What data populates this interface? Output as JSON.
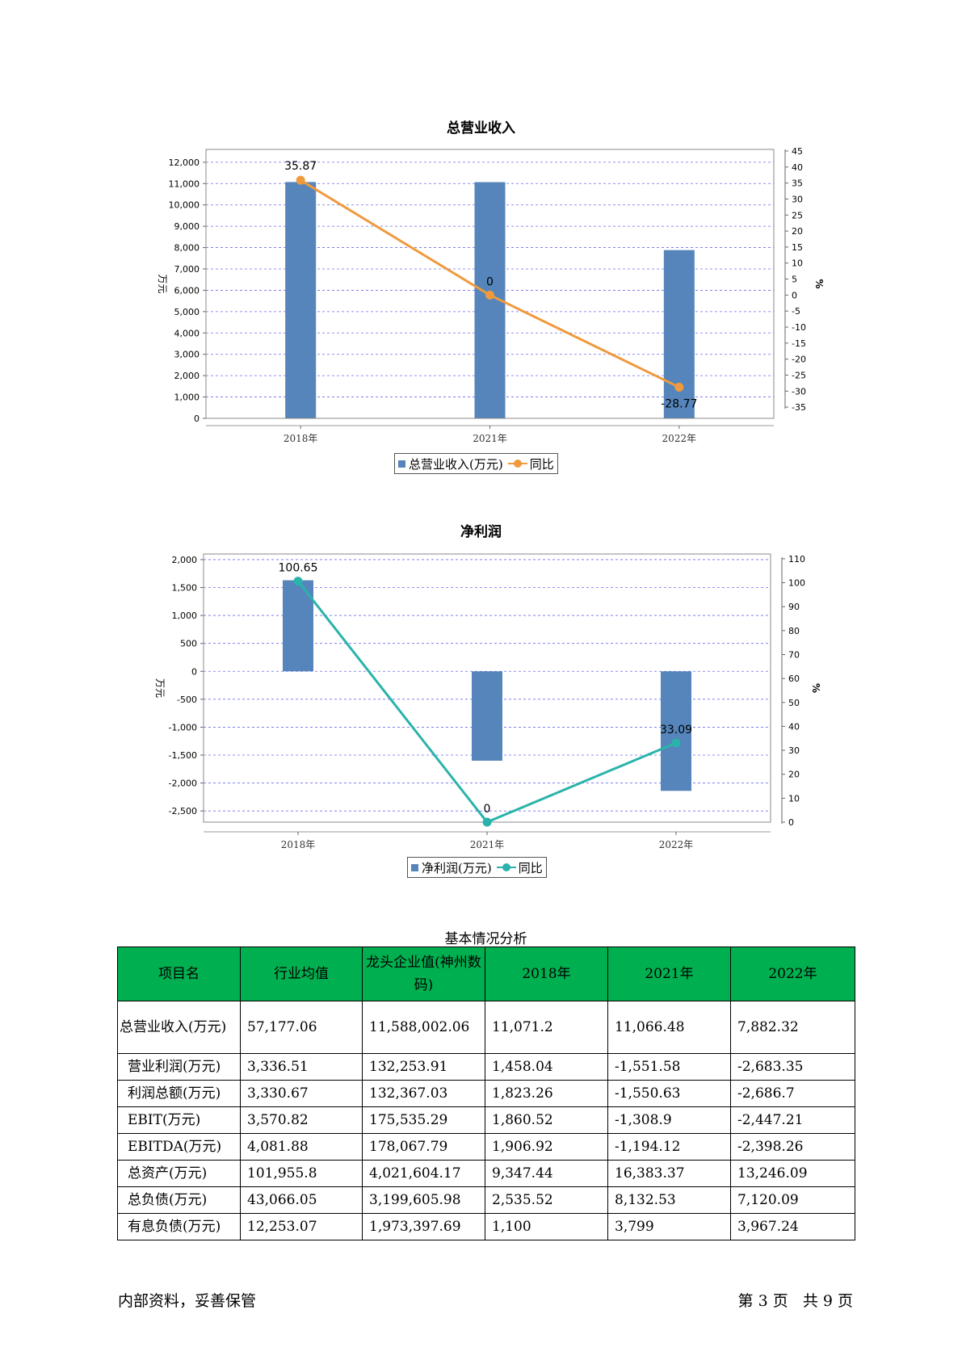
{
  "charts": [
    {
      "type": "bar",
      "title": "总营业收入",
      "ylabel": "万元",
      "y2label": "%",
      "categories": [
        "2018年",
        "2021年",
        "2022年"
      ],
      "ylim": [
        0,
        12600
      ],
      "yticks": [
        0,
        1000,
        2000,
        3000,
        4000,
        5000,
        6000,
        7000,
        8000,
        9000,
        10000,
        11000,
        12000
      ],
      "y2lim": [
        -38.5,
        45.5
      ],
      "y2ticks": [
        45,
        40,
        35,
        30,
        25,
        20,
        15,
        10,
        5,
        0,
        -5,
        -10,
        -15,
        -20,
        -25,
        -30,
        -35
      ],
      "series": [
        {
          "name": "总营业收入(万元)",
          "kind": "bar",
          "values": [
            11071.2,
            11066.48,
            7882.32
          ],
          "color": "#5585bb"
        },
        {
          "name": "同比",
          "kind": "line",
          "axis": "right",
          "values": [
            35.87,
            0,
            -28.77
          ],
          "labels": [
            "35.87",
            "0",
            "-28.77"
          ],
          "color": "#ef9a3e"
        }
      ],
      "legend_position": "bottom-center",
      "grid": true
    },
    {
      "type": "bar",
      "title": "净利润",
      "ylabel": "万元",
      "y2label": "%",
      "categories": [
        "2018年",
        "2021年",
        "2022年"
      ],
      "ylim": [
        -2700,
        2100
      ],
      "yticks": [
        2000,
        1500,
        1000,
        500,
        0,
        -500,
        -1000,
        -1500,
        -2000,
        -2500
      ],
      "y2lim": [
        0,
        112
      ],
      "y2ticks": [
        110,
        100,
        90,
        80,
        70,
        60,
        50,
        40,
        30,
        20,
        10,
        0
      ],
      "series": [
        {
          "name": "净利润(万元)",
          "kind": "bar",
          "values": [
            1630,
            -1600,
            -2140
          ],
          "color": "#5585bb"
        },
        {
          "name": "同比",
          "kind": "line",
          "axis": "right",
          "values": [
            100.65,
            0,
            33.09
          ],
          "labels": [
            "100.65",
            "0",
            "33.09"
          ],
          "color": "#2ab3aa"
        }
      ],
      "legend_position": "bottom-center",
      "grid": true
    }
  ],
  "table": {
    "caption": "基本情况分析",
    "headers": [
      "项目名",
      "行业均值",
      "龙头企业值(神州数码)",
      "2018年",
      "2021年",
      "2022年"
    ],
    "rows": [
      [
        "总营业收入(万元)",
        "57,177.06",
        "11,588,002.06",
        "11,071.2",
        "11,066.48",
        "7,882.32"
      ],
      [
        "营业利润(万元)",
        "3,336.51",
        "132,253.91",
        "1,458.04",
        "-1,551.58",
        "-2,683.35"
      ],
      [
        "利润总额(万元)",
        "3,330.67",
        "132,367.03",
        "1,823.26",
        "-1,550.63",
        "-2,686.7"
      ],
      [
        "EBIT(万元)",
        "3,570.82",
        "175,535.29",
        "1,860.52",
        "-1,308.9",
        "-2,447.21"
      ],
      [
        "EBITDA(万元)",
        "4,081.88",
        "178,067.79",
        "1,906.92",
        "-1,194.12",
        "-2,398.26"
      ],
      [
        "总资产(万元)",
        "101,955.8",
        "4,021,604.17",
        "9,347.44",
        "16,383.37",
        "13,246.09"
      ],
      [
        "总负债(万元)",
        "43,066.05",
        "3,199,605.98",
        "2,535.52",
        "8,132.53",
        "7,120.09"
      ],
      [
        "有息负债(万元)",
        "12,253.07",
        "1,973,397.69",
        "1,100",
        "3,799",
        "3,967.24"
      ]
    ]
  },
  "footer": {
    "left": "内部资料，妥善保管",
    "right": "第 3 页   共 9 页"
  }
}
